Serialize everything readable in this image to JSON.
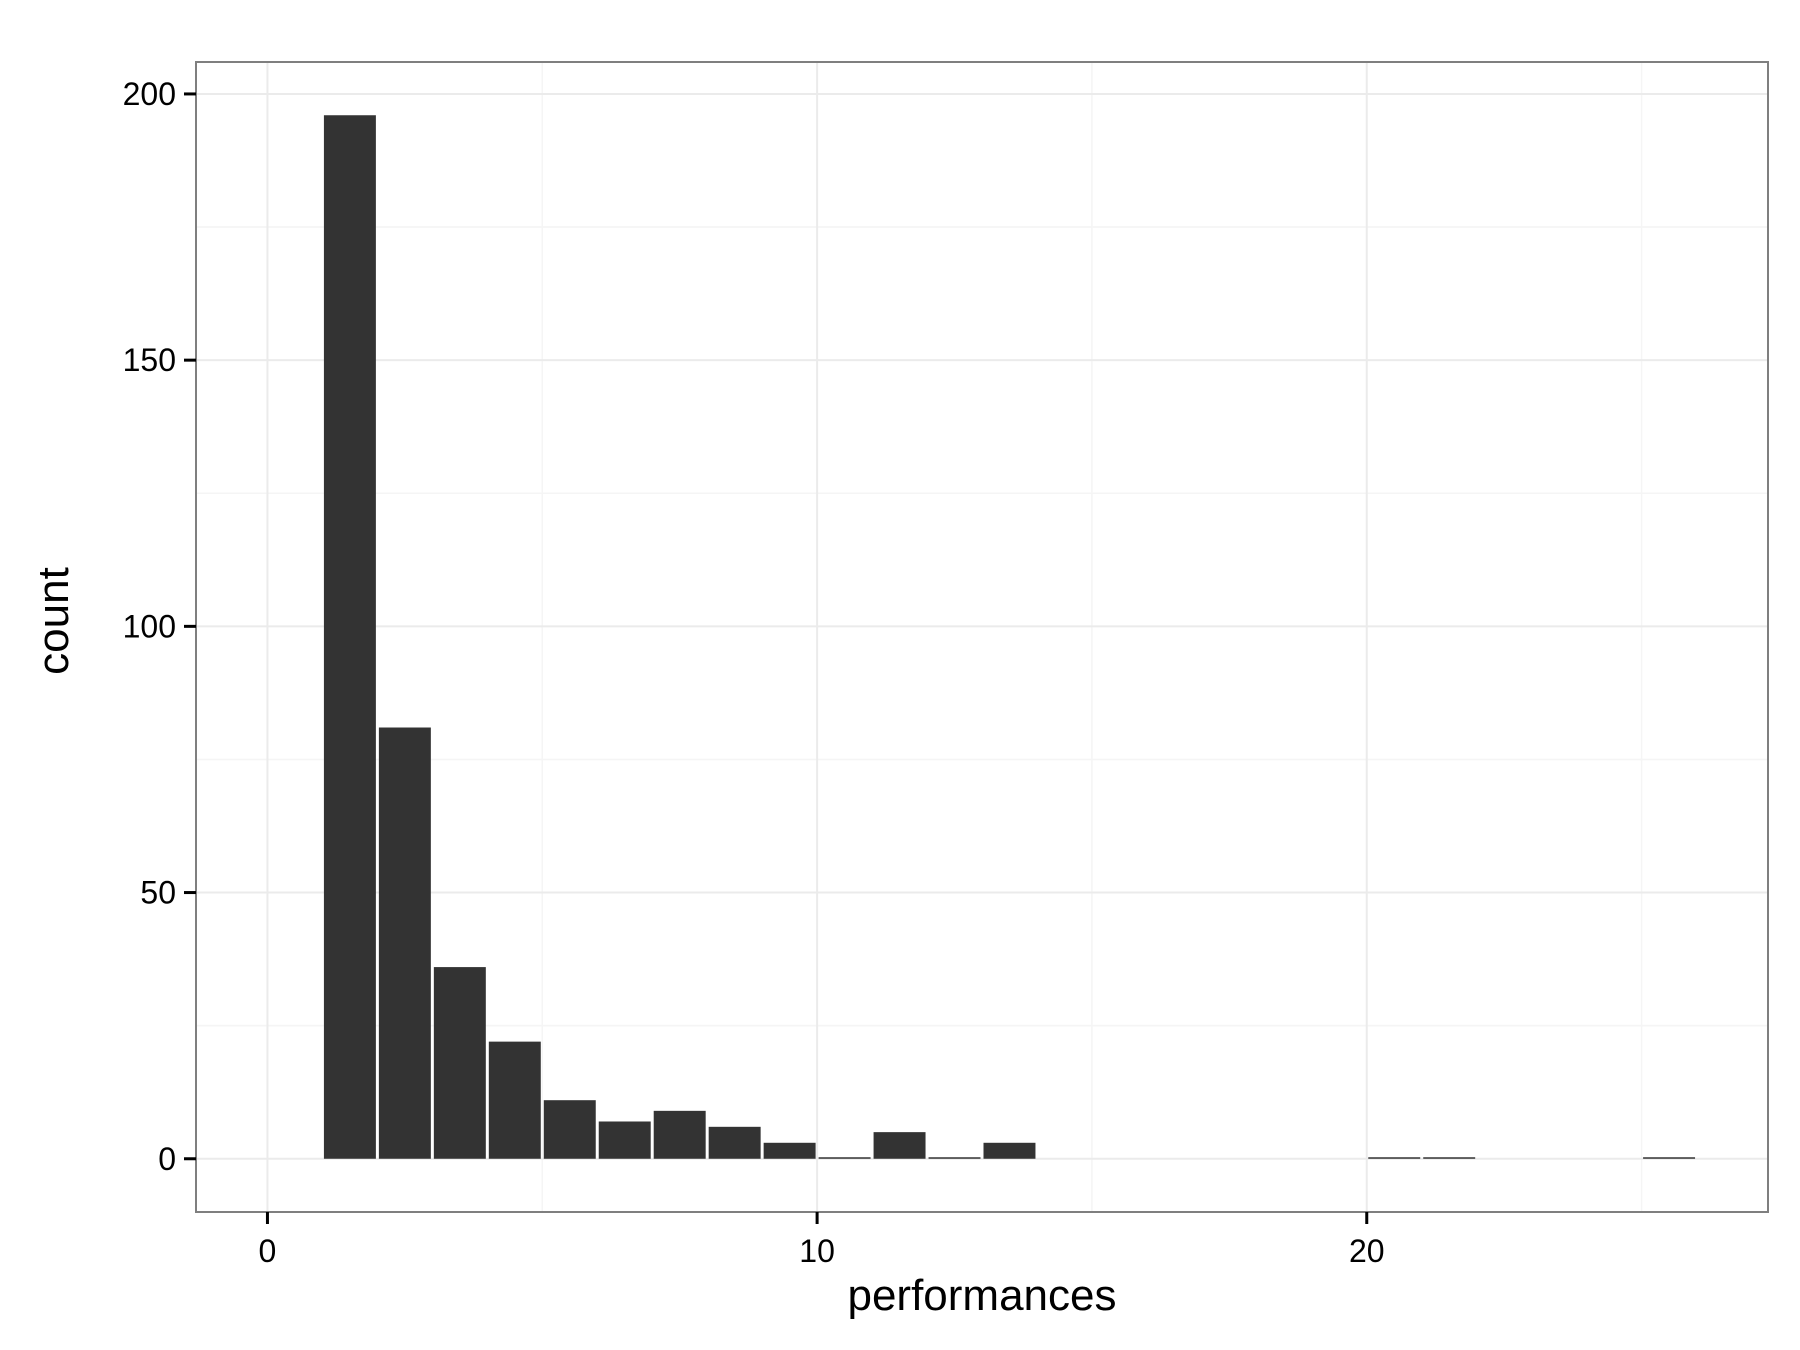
{
  "chart_data": {
    "type": "bar",
    "title": "",
    "xlabel": "performances",
    "ylabel": "count",
    "xlim": [
      -1.3,
      27.3
    ],
    "ylim": [
      -10,
      206
    ],
    "x_ticks": [
      "0",
      "10",
      "20"
    ],
    "y_ticks": [
      "0",
      "50",
      "100",
      "150",
      "200"
    ],
    "grid": true,
    "bin_width": 1,
    "bins": [
      {
        "x0": 1,
        "x1": 2,
        "count": 196
      },
      {
        "x0": 2,
        "x1": 3,
        "count": 81
      },
      {
        "x0": 3,
        "x1": 4,
        "count": 36
      },
      {
        "x0": 4,
        "x1": 5,
        "count": 22
      },
      {
        "x0": 5,
        "x1": 6,
        "count": 11
      },
      {
        "x0": 6,
        "x1": 7,
        "count": 7
      },
      {
        "x0": 7,
        "x1": 8,
        "count": 9
      },
      {
        "x0": 8,
        "x1": 9,
        "count": 6
      },
      {
        "x0": 9,
        "x1": 10,
        "count": 3
      },
      {
        "x0": 10,
        "x1": 11,
        "count": 0
      },
      {
        "x0": 11,
        "x1": 12,
        "count": 5
      },
      {
        "x0": 12,
        "x1": 13,
        "count": 0
      },
      {
        "x0": 13,
        "x1": 14,
        "count": 3
      },
      {
        "x0": 20,
        "x1": 21,
        "count": 0
      },
      {
        "x0": 21,
        "x1": 22,
        "count": 0
      },
      {
        "x0": 25,
        "x1": 26,
        "count": 0
      }
    ],
    "colors": {
      "bar": "#333333",
      "panel_border": "#7f7f7f",
      "grid_major": "#ebebeb",
      "grid_minor": "#f5f5f5",
      "axis_tick": "#000000"
    }
  }
}
